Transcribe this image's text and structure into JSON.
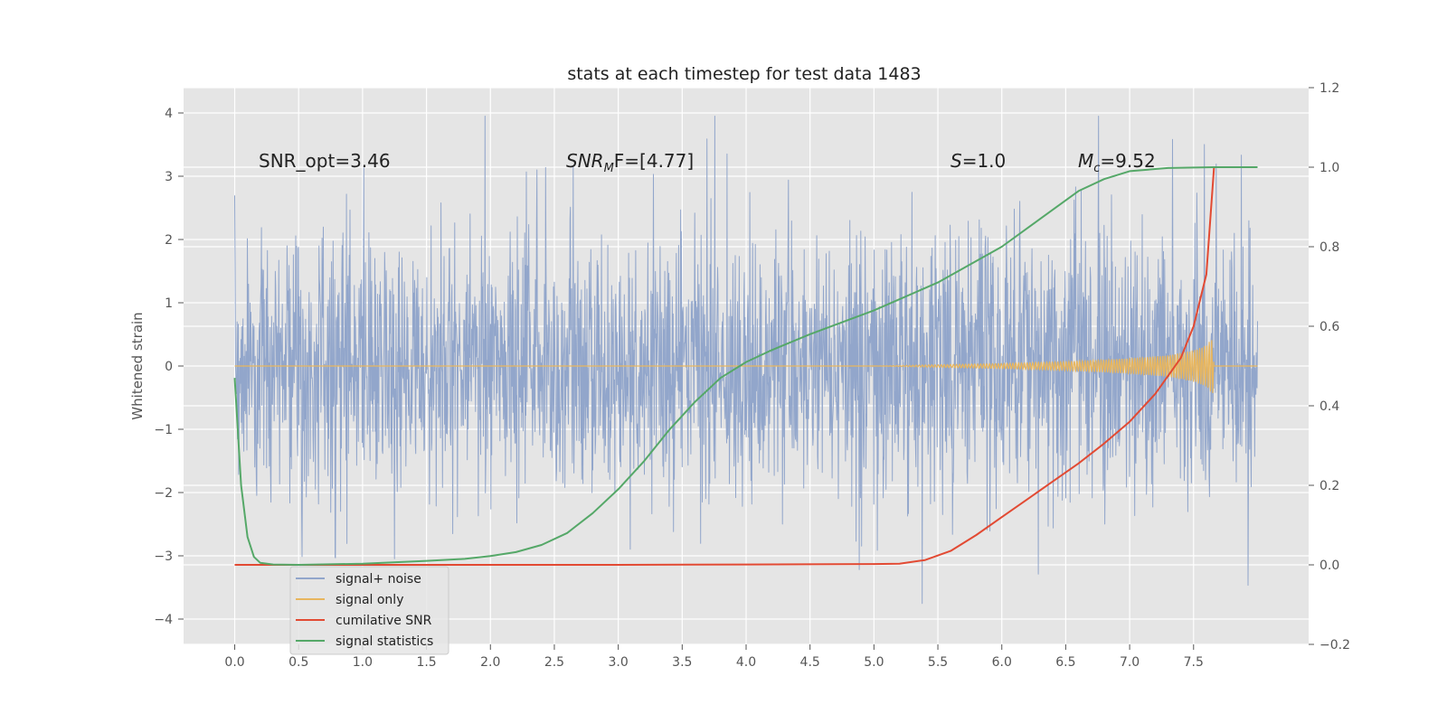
{
  "chart_data": {
    "type": "line",
    "title": "stats at each timestep for test data 1483",
    "ylabel": "Whitened strain",
    "xlim": [
      -0.4,
      8.4
    ],
    "ylim": [
      -4.4,
      4.4
    ],
    "y2lim": [
      -0.2,
      1.2
    ],
    "x_ticks": [
      0.0,
      0.5,
      1.0,
      1.5,
      2.0,
      2.5,
      3.0,
      3.5,
      4.0,
      4.5,
      5.0,
      5.5,
      6.0,
      6.5,
      7.0,
      7.5
    ],
    "x_tick_labels": [
      "0.0",
      "0.5",
      "1.0",
      "1.5",
      "2.0",
      "2.5",
      "3.0",
      "3.5",
      "4.0",
      "4.5",
      "5.0",
      "5.5",
      "6.0",
      "6.5",
      "7.0",
      "7.5"
    ],
    "y_ticks": [
      -4,
      -3,
      -2,
      -1,
      0,
      1,
      2,
      3,
      4
    ],
    "y_tick_labels": [
      "−4",
      "−3",
      "−2",
      "−1",
      "0",
      "1",
      "2",
      "3",
      "4"
    ],
    "y2_ticks": [
      -0.2,
      0.0,
      0.2,
      0.4,
      0.6,
      0.8,
      1.0,
      1.2
    ],
    "y2_tick_labels": [
      "−0.2",
      "0.0",
      "0.2",
      "0.4",
      "0.6",
      "0.8",
      "1.0",
      "1.2"
    ],
    "grid": true,
    "legend_position": "lower-left",
    "annotations": {
      "snr_opt": "SNR_opt=3.46",
      "snr_mf_base": "SNR",
      "snr_mf_sub": "M",
      "snr_mf_rest": "F=[4.77]",
      "s_var": "S",
      "s_val": "=1.0",
      "mc_var": "M",
      "mc_sub": "c",
      "mc_val": "=9.52"
    },
    "series": [
      {
        "name": "signal+ noise",
        "axis": "left",
        "color": "#92a6cb",
        "x_range": [
          0.0,
          8.0
        ],
        "typical_envelope": [
          -2.0,
          2.0
        ],
        "extreme_range": [
          -4.0,
          3.95
        ]
      },
      {
        "name": "signal only",
        "axis": "left",
        "color": "#e8b65e",
        "envelope": {
          "x": [
            0.0,
            5.0,
            5.5,
            6.0,
            6.5,
            7.0,
            7.3,
            7.5,
            7.6,
            7.65,
            7.66,
            8.0
          ],
          "amplitude": [
            0.0,
            0.0,
            0.02,
            0.04,
            0.07,
            0.12,
            0.17,
            0.25,
            0.33,
            0.45,
            0.0,
            0.0
          ]
        }
      },
      {
        "name": "cumilative SNR",
        "axis": "right",
        "color": "#e24a33",
        "x": [
          0.0,
          1.0,
          2.0,
          3.0,
          4.0,
          5.0,
          5.2,
          5.4,
          5.6,
          5.8,
          6.0,
          6.2,
          6.4,
          6.6,
          6.8,
          7.0,
          7.2,
          7.4,
          7.5,
          7.6,
          7.66,
          8.0
        ],
        "y": [
          0.0,
          0.0,
          0.0,
          0.0,
          0.001,
          0.002,
          0.003,
          0.012,
          0.035,
          0.075,
          0.12,
          0.165,
          0.21,
          0.255,
          0.305,
          0.36,
          0.43,
          0.52,
          0.6,
          0.73,
          1.0,
          1.0
        ]
      },
      {
        "name": "signal statistics",
        "axis": "right",
        "color": "#55a868",
        "x": [
          0.0,
          0.05,
          0.1,
          0.15,
          0.2,
          0.3,
          0.5,
          1.0,
          1.5,
          1.8,
          2.0,
          2.2,
          2.4,
          2.6,
          2.8,
          3.0,
          3.2,
          3.4,
          3.6,
          3.8,
          4.0,
          4.2,
          4.5,
          5.0,
          5.5,
          6.0,
          6.3,
          6.6,
          6.8,
          7.0,
          7.3,
          7.66,
          8.0
        ],
        "y": [
          0.47,
          0.2,
          0.07,
          0.02,
          0.005,
          0.001,
          0.0,
          0.003,
          0.01,
          0.015,
          0.022,
          0.032,
          0.05,
          0.08,
          0.13,
          0.19,
          0.26,
          0.34,
          0.41,
          0.47,
          0.51,
          0.54,
          0.58,
          0.64,
          0.71,
          0.8,
          0.87,
          0.94,
          0.97,
          0.99,
          0.998,
          1.0,
          1.0
        ]
      }
    ]
  }
}
